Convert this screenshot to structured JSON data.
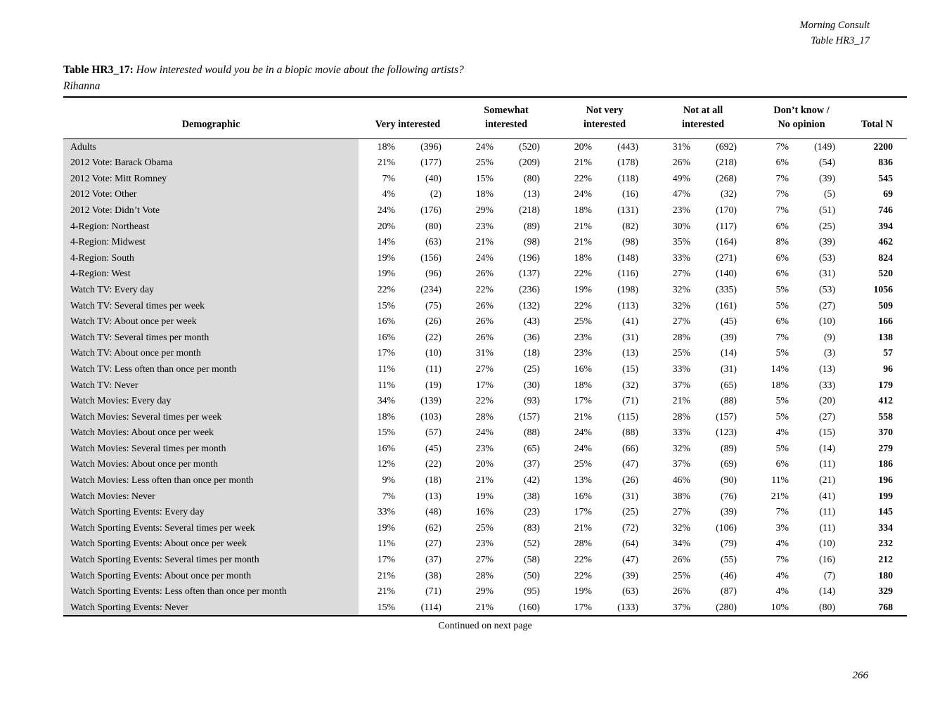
{
  "doc": {
    "source": "Morning Consult",
    "table_ref": "Table HR3_17",
    "title_label": "Table HR3_17:",
    "title_question": "How interested would you be in a biopic movie about the following artists?",
    "title_subject": "Rihanna",
    "continued_note": "Continued on next page",
    "page_number": "266"
  },
  "table": {
    "header": {
      "demographic": "Demographic",
      "total": "Total N"
    },
    "categories": [
      {
        "line1": "",
        "line2": "Very interested"
      },
      {
        "line1": "Somewhat",
        "line2": "interested"
      },
      {
        "line1": "Not very",
        "line2": "interested"
      },
      {
        "line1": "Not at all",
        "line2": "interested"
      },
      {
        "line1": "Don’t know /",
        "line2": "No opinion"
      }
    ],
    "rows": [
      {
        "demographic": "Adults",
        "cells": [
          "18%",
          "(396)",
          "24%",
          "(520)",
          "20%",
          "(443)",
          "31%",
          "(692)",
          "7%",
          "(149)"
        ],
        "total": "2200"
      },
      {
        "demographic": "2012 Vote: Barack Obama",
        "cells": [
          "21%",
          "(177)",
          "25%",
          "(209)",
          "21%",
          "(178)",
          "26%",
          "(218)",
          "6%",
          "(54)"
        ],
        "total": "836"
      },
      {
        "demographic": "2012 Vote: Mitt Romney",
        "cells": [
          "7%",
          "(40)",
          "15%",
          "(80)",
          "22%",
          "(118)",
          "49%",
          "(268)",
          "7%",
          "(39)"
        ],
        "total": "545"
      },
      {
        "demographic": "2012 Vote: Other",
        "cells": [
          "4%",
          "(2)",
          "18%",
          "(13)",
          "24%",
          "(16)",
          "47%",
          "(32)",
          "7%",
          "(5)"
        ],
        "total": "69"
      },
      {
        "demographic": "2012 Vote: Didn’t Vote",
        "cells": [
          "24%",
          "(176)",
          "29%",
          "(218)",
          "18%",
          "(131)",
          "23%",
          "(170)",
          "7%",
          "(51)"
        ],
        "total": "746"
      },
      {
        "demographic": "4-Region: Northeast",
        "cells": [
          "20%",
          "(80)",
          "23%",
          "(89)",
          "21%",
          "(82)",
          "30%",
          "(117)",
          "6%",
          "(25)"
        ],
        "total": "394"
      },
      {
        "demographic": "4-Region: Midwest",
        "cells": [
          "14%",
          "(63)",
          "21%",
          "(98)",
          "21%",
          "(98)",
          "35%",
          "(164)",
          "8%",
          "(39)"
        ],
        "total": "462"
      },
      {
        "demographic": "4-Region: South",
        "cells": [
          "19%",
          "(156)",
          "24%",
          "(196)",
          "18%",
          "(148)",
          "33%",
          "(271)",
          "6%",
          "(53)"
        ],
        "total": "824"
      },
      {
        "demographic": "4-Region: West",
        "cells": [
          "19%",
          "(96)",
          "26%",
          "(137)",
          "22%",
          "(116)",
          "27%",
          "(140)",
          "6%",
          "(31)"
        ],
        "total": "520"
      },
      {
        "demographic": "Watch TV: Every day",
        "cells": [
          "22%",
          "(234)",
          "22%",
          "(236)",
          "19%",
          "(198)",
          "32%",
          "(335)",
          "5%",
          "(53)"
        ],
        "total": "1056"
      },
      {
        "demographic": "Watch TV: Several times per week",
        "cells": [
          "15%",
          "(75)",
          "26%",
          "(132)",
          "22%",
          "(113)",
          "32%",
          "(161)",
          "5%",
          "(27)"
        ],
        "total": "509"
      },
      {
        "demographic": "Watch TV: About once per week",
        "cells": [
          "16%",
          "(26)",
          "26%",
          "(43)",
          "25%",
          "(41)",
          "27%",
          "(45)",
          "6%",
          "(10)"
        ],
        "total": "166"
      },
      {
        "demographic": "Watch TV: Several times per month",
        "cells": [
          "16%",
          "(22)",
          "26%",
          "(36)",
          "23%",
          "(31)",
          "28%",
          "(39)",
          "7%",
          "(9)"
        ],
        "total": "138"
      },
      {
        "demographic": "Watch TV: About once per month",
        "cells": [
          "17%",
          "(10)",
          "31%",
          "(18)",
          "23%",
          "(13)",
          "25%",
          "(14)",
          "5%",
          "(3)"
        ],
        "total": "57"
      },
      {
        "demographic": "Watch TV: Less often than once per month",
        "cells": [
          "11%",
          "(11)",
          "27%",
          "(25)",
          "16%",
          "(15)",
          "33%",
          "(31)",
          "14%",
          "(13)"
        ],
        "total": "96"
      },
      {
        "demographic": "Watch TV: Never",
        "cells": [
          "11%",
          "(19)",
          "17%",
          "(30)",
          "18%",
          "(32)",
          "37%",
          "(65)",
          "18%",
          "(33)"
        ],
        "total": "179"
      },
      {
        "demographic": "Watch Movies: Every day",
        "cells": [
          "34%",
          "(139)",
          "22%",
          "(93)",
          "17%",
          "(71)",
          "21%",
          "(88)",
          "5%",
          "(20)"
        ],
        "total": "412"
      },
      {
        "demographic": "Watch Movies: Several times per week",
        "cells": [
          "18%",
          "(103)",
          "28%",
          "(157)",
          "21%",
          "(115)",
          "28%",
          "(157)",
          "5%",
          "(27)"
        ],
        "total": "558"
      },
      {
        "demographic": "Watch Movies: About once per week",
        "cells": [
          "15%",
          "(57)",
          "24%",
          "(88)",
          "24%",
          "(88)",
          "33%",
          "(123)",
          "4%",
          "(15)"
        ],
        "total": "370"
      },
      {
        "demographic": "Watch Movies: Several times per month",
        "cells": [
          "16%",
          "(45)",
          "23%",
          "(65)",
          "24%",
          "(66)",
          "32%",
          "(89)",
          "5%",
          "(14)"
        ],
        "total": "279"
      },
      {
        "demographic": "Watch Movies: About once per month",
        "cells": [
          "12%",
          "(22)",
          "20%",
          "(37)",
          "25%",
          "(47)",
          "37%",
          "(69)",
          "6%",
          "(11)"
        ],
        "total": "186"
      },
      {
        "demographic": "Watch Movies: Less often than once per month",
        "cells": [
          "9%",
          "(18)",
          "21%",
          "(42)",
          "13%",
          "(26)",
          "46%",
          "(90)",
          "11%",
          "(21)"
        ],
        "total": "196"
      },
      {
        "demographic": "Watch Movies: Never",
        "cells": [
          "7%",
          "(13)",
          "19%",
          "(38)",
          "16%",
          "(31)",
          "38%",
          "(76)",
          "21%",
          "(41)"
        ],
        "total": "199"
      },
      {
        "demographic": "Watch Sporting Events: Every day",
        "cells": [
          "33%",
          "(48)",
          "16%",
          "(23)",
          "17%",
          "(25)",
          "27%",
          "(39)",
          "7%",
          "(11)"
        ],
        "total": "145"
      },
      {
        "demographic": "Watch Sporting Events: Several times per week",
        "cells": [
          "19%",
          "(62)",
          "25%",
          "(83)",
          "21%",
          "(72)",
          "32%",
          "(106)",
          "3%",
          "(11)"
        ],
        "total": "334"
      },
      {
        "demographic": "Watch Sporting Events: About once per week",
        "cells": [
          "11%",
          "(27)",
          "23%",
          "(52)",
          "28%",
          "(64)",
          "34%",
          "(79)",
          "4%",
          "(10)"
        ],
        "total": "232"
      },
      {
        "demographic": "Watch Sporting Events: Several times per month",
        "cells": [
          "17%",
          "(37)",
          "27%",
          "(58)",
          "22%",
          "(47)",
          "26%",
          "(55)",
          "7%",
          "(16)"
        ],
        "total": "212"
      },
      {
        "demographic": "Watch Sporting Events: About once per month",
        "cells": [
          "21%",
          "(38)",
          "28%",
          "(50)",
          "22%",
          "(39)",
          "25%",
          "(46)",
          "4%",
          "(7)"
        ],
        "total": "180"
      },
      {
        "demographic": "Watch Sporting Events: Less often than once per month",
        "cells": [
          "21%",
          "(71)",
          "29%",
          "(95)",
          "19%",
          "(63)",
          "26%",
          "(87)",
          "4%",
          "(14)"
        ],
        "total": "329"
      },
      {
        "demographic": "Watch Sporting Events: Never",
        "cells": [
          "15%",
          "(114)",
          "21%",
          "(160)",
          "17%",
          "(133)",
          "37%",
          "(280)",
          "10%",
          "(80)"
        ],
        "total": "768"
      }
    ]
  }
}
